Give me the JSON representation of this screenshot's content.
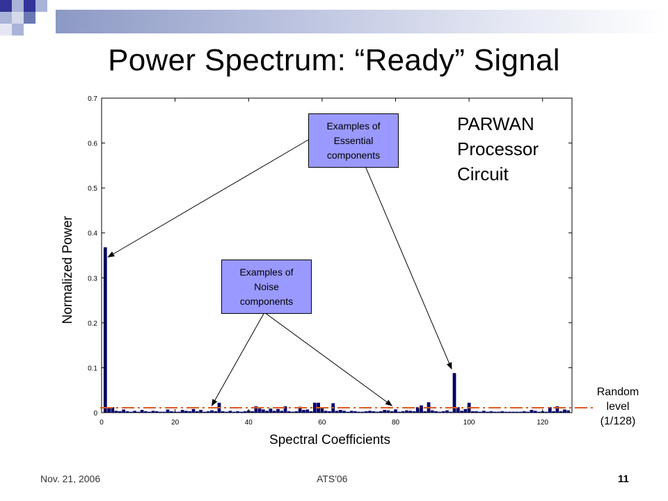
{
  "slide": {
    "title": "Power Spectrum: “Ready” Signal",
    "footer_date": "Nov. 21, 2006",
    "footer_conference": "ATS'06",
    "page_number": "11",
    "accent_colors": {
      "dark": "#333399",
      "mid": "#6b78b4",
      "light": "#aab4d8"
    }
  },
  "annotations": {
    "essential": [
      "Examples of",
      "Essential",
      "components"
    ],
    "noise": [
      "Examples of",
      "Noise",
      "components"
    ],
    "circuit": [
      "PARWAN",
      "Processor",
      "Circuit"
    ],
    "random_level": [
      "Random",
      "level",
      "(1/128)"
    ]
  },
  "chart_data": {
    "type": "bar",
    "title": "",
    "xlabel": "Spectral Coefficients",
    "ylabel": "Normalized Power",
    "xlim": [
      0,
      128
    ],
    "ylim": [
      0,
      0.7
    ],
    "x_ticks": [
      0,
      20,
      40,
      60,
      80,
      100,
      120
    ],
    "y_ticks": [
      0,
      0.1,
      0.2,
      0.3,
      0.4,
      0.5,
      0.6,
      0.7
    ],
    "y_tick_labels": [
      "0",
      "0.1",
      "0.2",
      "0.3",
      "0.4",
      "0.5",
      "0.6",
      "0.7"
    ],
    "grid": false,
    "bar_color": "#000066",
    "x": [
      1,
      2,
      3,
      4,
      5,
      6,
      7,
      8,
      9,
      10,
      11,
      12,
      13,
      14,
      15,
      16,
      17,
      18,
      19,
      20,
      21,
      22,
      23,
      24,
      25,
      26,
      27,
      28,
      29,
      30,
      31,
      32,
      33,
      34,
      35,
      36,
      37,
      38,
      39,
      40,
      41,
      42,
      43,
      44,
      45,
      46,
      47,
      48,
      49,
      50,
      51,
      52,
      53,
      54,
      55,
      56,
      57,
      58,
      59,
      60,
      61,
      62,
      63,
      64,
      65,
      66,
      67,
      68,
      69,
      70,
      71,
      72,
      73,
      74,
      75,
      76,
      77,
      78,
      79,
      80,
      81,
      82,
      83,
      84,
      85,
      86,
      87,
      88,
      89,
      90,
      91,
      92,
      93,
      94,
      95,
      96,
      97,
      98,
      99,
      100,
      101,
      102,
      103,
      104,
      105,
      106,
      107,
      108,
      109,
      110,
      111,
      112,
      113,
      114,
      115,
      116,
      117,
      118,
      119,
      120,
      121,
      122,
      123,
      124,
      125,
      126,
      127
    ],
    "values": [
      0.368,
      0.01,
      0.012,
      0.004,
      0.003,
      0.007,
      0.003,
      0.002,
      0.004,
      0.002,
      0.006,
      0.003,
      0.002,
      0.004,
      0.003,
      0.002,
      0.002,
      0.007,
      0.003,
      0.002,
      0.002,
      0.006,
      0.004,
      0.003,
      0.008,
      0.003,
      0.006,
      0.002,
      0.003,
      0.005,
      0.003,
      0.022,
      0.003,
      0.002,
      0.004,
      0.002,
      0.003,
      0.002,
      0.003,
      0.005,
      0.003,
      0.014,
      0.009,
      0.007,
      0.004,
      0.009,
      0.004,
      0.008,
      0.004,
      0.014,
      0.003,
      0.002,
      0.003,
      0.013,
      0.006,
      0.007,
      0.003,
      0.022,
      0.022,
      0.012,
      0.004,
      0.003,
      0.021,
      0.004,
      0.006,
      0.004,
      0.002,
      0.004,
      0.003,
      0.002,
      0.002,
      0.003,
      0.004,
      0.003,
      0.002,
      0.003,
      0.006,
      0.005,
      0.003,
      0.007,
      0.002,
      0.003,
      0.005,
      0.004,
      0.003,
      0.012,
      0.016,
      0.003,
      0.023,
      0.005,
      0.003,
      0.002,
      0.003,
      0.005,
      0.002,
      0.088,
      0.012,
      0.004,
      0.008,
      0.022,
      0.003,
      0.003,
      0.002,
      0.004,
      0.002,
      0.003,
      0.002,
      0.002,
      0.003,
      0.002,
      0.002,
      0.002,
      0.002,
      0.002,
      0.003,
      0.002,
      0.006,
      0.004,
      0.002,
      0.003,
      0.002,
      0.012,
      0.003,
      0.014,
      0.003,
      0.007,
      0.005
    ],
    "reference_line": {
      "label": "Random level (1/128)",
      "value": 0.0078125,
      "color": "#e05a20"
    }
  }
}
